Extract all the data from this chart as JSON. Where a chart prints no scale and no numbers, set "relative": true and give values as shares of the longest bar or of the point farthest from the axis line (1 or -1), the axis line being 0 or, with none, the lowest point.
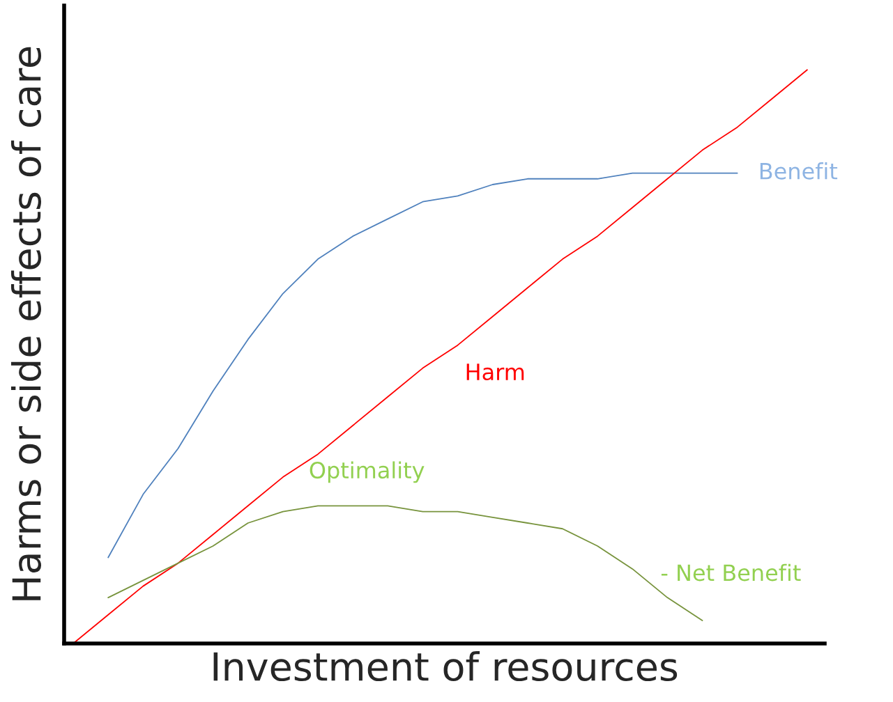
{
  "chart_data": {
    "type": "line",
    "relative": true,
    "xlabel": "Investment of resources",
    "ylabel": "Harms or side effects of care",
    "categories": [
      null,
      null,
      null,
      null,
      null,
      null,
      null,
      null,
      null,
      null,
      null,
      null,
      null,
      null,
      null,
      null,
      null,
      null,
      null,
      null,
      null,
      null
    ],
    "series": [
      {
        "name": "Benefit",
        "color": "#4f81bd",
        "values": [
          null,
          0.15,
          0.26,
          0.34,
          0.44,
          0.53,
          0.61,
          0.67,
          0.71,
          0.74,
          0.77,
          0.78,
          0.8,
          0.81,
          0.81,
          0.81,
          0.82,
          0.82,
          0.82,
          0.82,
          null,
          null
        ]
      },
      {
        "name": "Harm",
        "color": "#ff0000",
        "values": [
          0,
          0.05,
          0.1,
          0.14,
          0.19,
          0.24,
          0.29,
          0.33,
          0.38,
          0.43,
          0.48,
          0.52,
          0.57,
          0.62,
          0.67,
          0.71,
          0.76,
          0.81,
          0.86,
          0.9,
          0.95,
          1
        ]
      },
      {
        "name": "- Net Benefit",
        "color": "#77933c",
        "values": [
          null,
          0.08,
          0.11,
          0.14,
          0.17,
          0.21,
          0.23,
          0.24,
          0.24,
          0.24,
          0.23,
          0.23,
          0.22,
          0.21,
          0.2,
          0.17,
          0.13,
          0.08,
          0.04,
          null,
          null,
          null
        ]
      }
    ],
    "annotations": [
      "Optimality"
    ],
    "legend": false,
    "marker": "none",
    "line_style": "solid"
  }
}
